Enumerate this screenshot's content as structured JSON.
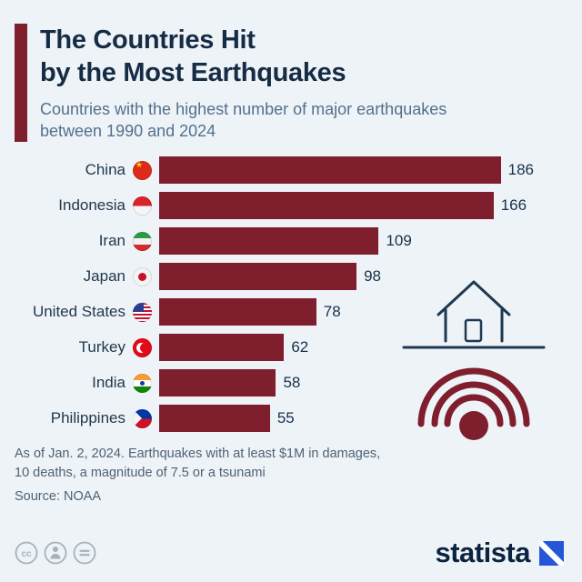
{
  "colors": {
    "background": "#eef3f8",
    "accent": "#7f1e2d",
    "bar": "#7f1e2d",
    "title": "#152c44",
    "subtitle": "#53708b",
    "value": "#17304a",
    "note": "#4e6273",
    "brand_blue": "#2457d6",
    "illustration_navy": "#1d3951"
  },
  "header": {
    "title_line1": "The Countries Hit",
    "title_line2": "by the Most Earthquakes",
    "subtitle_line1": "Countries with the highest number of major earthquakes",
    "subtitle_line2": "between 1990 and 2024"
  },
  "chart_data": {
    "type": "bar",
    "orientation": "horizontal",
    "title": "The Countries Hit by the Most Earthquakes",
    "subtitle": "Countries with the highest number of major earthquakes between 1990 and 2024",
    "categories": [
      "China",
      "Indonesia",
      "Iran",
      "Japan",
      "United States",
      "Turkey",
      "India",
      "Philippines"
    ],
    "values": [
      186,
      166,
      109,
      98,
      78,
      62,
      58,
      55
    ],
    "flags": [
      "china",
      "indonesia",
      "iran",
      "japan",
      "united-states",
      "turkey",
      "india",
      "philippines"
    ],
    "xlabel": "",
    "ylabel": "",
    "xlim": [
      0,
      186
    ],
    "grid": false,
    "legend": false,
    "value_labels": true,
    "bar_color": "#7f1e2d"
  },
  "footer": {
    "note_line1": "As of Jan. 2, 2024. Earthquakes with at least $1M in damages,",
    "note_line2": "10 deaths, a magnitude of 7.5 or a tsunami",
    "source": "Source: NOAA",
    "cc_label": "cc",
    "brand": "statista"
  }
}
